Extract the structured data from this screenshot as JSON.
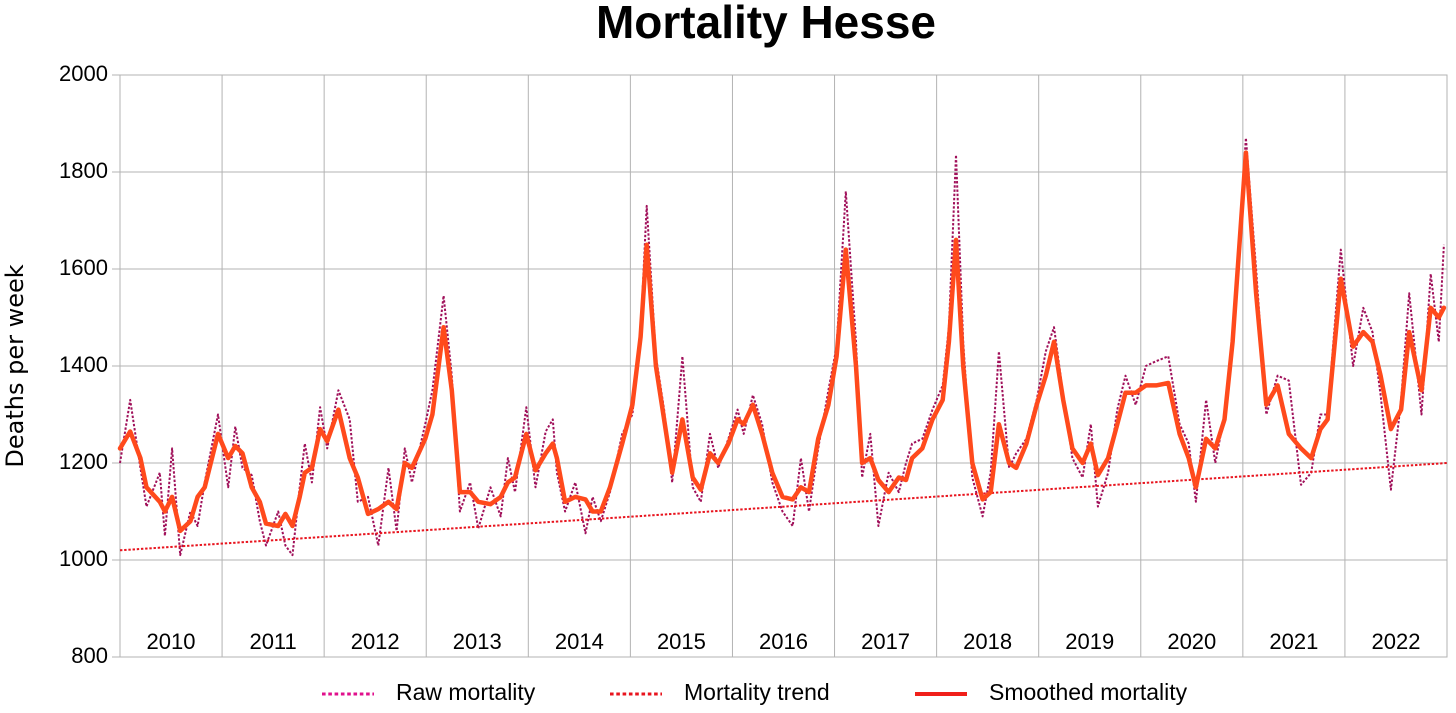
{
  "chart_data": {
    "type": "line",
    "title": "Mortality Hesse",
    "y_label": "Deaths per week",
    "xlim": [
      2010,
      2023
    ],
    "xgrid": [
      2010,
      2011,
      2012,
      2013,
      2014,
      2015,
      2016,
      2017,
      2018,
      2019,
      2020,
      2021,
      2022,
      2023
    ],
    "xticks": [
      {
        "value": 2010.5,
        "label": "2010"
      },
      {
        "value": 2011.5,
        "label": "2011"
      },
      {
        "value": 2012.5,
        "label": "2012"
      },
      {
        "value": 2013.5,
        "label": "2013"
      },
      {
        "value": 2014.5,
        "label": "2014"
      },
      {
        "value": 2015.5,
        "label": "2015"
      },
      {
        "value": 2016.5,
        "label": "2016"
      },
      {
        "value": 2017.5,
        "label": "2017"
      },
      {
        "value": 2018.5,
        "label": "2018"
      },
      {
        "value": 2019.5,
        "label": "2019"
      },
      {
        "value": 2020.5,
        "label": "2020"
      },
      {
        "value": 2021.5,
        "label": "2021"
      },
      {
        "value": 2022.5,
        "label": "2022"
      }
    ],
    "ylim": [
      800,
      2000
    ],
    "yticks": [
      800,
      1000,
      1200,
      1400,
      1600,
      1800,
      2000
    ],
    "grid": true,
    "legend": "bottom",
    "series": [
      {
        "name": "Raw mortality",
        "color": "#a0105a",
        "legend_color": "#e0108c",
        "style": "dotted",
        "width": 2,
        "x": [
          2010.0,
          2010.1,
          2010.2,
          2010.26,
          2010.39,
          2010.44,
          2010.51,
          2010.59,
          2010.69,
          2010.76,
          2010.83,
          2010.96,
          2011.06,
          2011.13,
          2011.2,
          2011.29,
          2011.37,
          2011.43,
          2011.55,
          2011.62,
          2011.69,
          2011.76,
          2011.81,
          2011.88,
          2011.96,
          2012.03,
          2012.14,
          2012.25,
          2012.33,
          2012.43,
          2012.53,
          2012.63,
          2012.71,
          2012.79,
          2012.86,
          2012.99,
          2013.06,
          2013.17,
          2013.25,
          2013.33,
          2013.43,
          2013.51,
          2013.63,
          2013.73,
          2013.8,
          2013.87,
          2013.98,
          2014.07,
          2014.17,
          2014.24,
          2014.28,
          2014.36,
          2014.46,
          2014.56,
          2014.63,
          2014.71,
          2014.8,
          2014.92,
          2015.02,
          2015.1,
          2015.16,
          2015.25,
          2015.33,
          2015.41,
          2015.51,
          2015.61,
          2015.69,
          2015.78,
          2015.86,
          2015.96,
          2016.05,
          2016.11,
          2016.2,
          2016.29,
          2016.39,
          2016.49,
          2016.59,
          2016.67,
          2016.75,
          2016.84,
          2016.94,
          2017.02,
          2017.11,
          2017.21,
          2017.27,
          2017.35,
          2017.43,
          2017.53,
          2017.63,
          2017.7,
          2017.76,
          2017.86,
          2017.96,
          2018.06,
          2018.12,
          2018.19,
          2018.26,
          2018.35,
          2018.45,
          2018.53,
          2018.61,
          2018.71,
          2018.78,
          2018.88,
          2018.98,
          2019.07,
          2019.15,
          2019.24,
          2019.33,
          2019.43,
          2019.51,
          2019.58,
          2019.68,
          2019.77,
          2019.85,
          2019.95,
          2020.05,
          2020.15,
          2020.27,
          2020.38,
          2020.47,
          2020.54,
          2020.64,
          2020.73,
          2020.82,
          2020.9,
          2021.03,
          2021.13,
          2021.23,
          2021.34,
          2021.45,
          2021.57,
          2021.67,
          2021.76,
          2021.83,
          2021.96,
          2022.08,
          2022.18,
          2022.27,
          2022.35,
          2022.45,
          2022.55,
          2022.63,
          2022.75,
          2022.84,
          2022.92,
          2022.97
        ],
        "values": [
          1200,
          1330,
          1190,
          1110,
          1180,
          1050,
          1230,
          1010,
          1100,
          1070,
          1160,
          1300,
          1150,
          1275,
          1190,
          1175,
          1080,
          1030,
          1100,
          1030,
          1010,
          1150,
          1240,
          1160,
          1315,
          1230,
          1350,
          1290,
          1120,
          1130,
          1030,
          1190,
          1060,
          1230,
          1160,
          1280,
          1350,
          1545,
          1380,
          1100,
          1160,
          1065,
          1150,
          1090,
          1210,
          1140,
          1315,
          1150,
          1265,
          1290,
          1180,
          1100,
          1160,
          1055,
          1130,
          1080,
          1140,
          1260,
          1300,
          1470,
          1730,
          1420,
          1310,
          1160,
          1420,
          1150,
          1120,
          1260,
          1190,
          1250,
          1310,
          1260,
          1340,
          1280,
          1160,
          1100,
          1070,
          1210,
          1100,
          1230,
          1350,
          1440,
          1760,
          1450,
          1170,
          1260,
          1070,
          1180,
          1140,
          1200,
          1240,
          1250,
          1310,
          1360,
          1480,
          1835,
          1450,
          1170,
          1090,
          1180,
          1430,
          1190,
          1220,
          1250,
          1330,
          1430,
          1480,
          1340,
          1210,
          1170,
          1280,
          1110,
          1180,
          1310,
          1380,
          1320,
          1400,
          1410,
          1420,
          1280,
          1240,
          1120,
          1330,
          1200,
          1300,
          1460,
          1870,
          1600,
          1300,
          1380,
          1370,
          1155,
          1180,
          1300,
          1300,
          1640,
          1400,
          1520,
          1470,
          1340,
          1145,
          1330,
          1550,
          1300,
          1590,
          1450,
          1650
        ]
      },
      {
        "name": "Mortality trend",
        "color": "#e8141e",
        "legend_color": "#e8141e",
        "style": "dotted",
        "width": 2,
        "x": [
          2010,
          2023
        ],
        "values": [
          1020,
          1200
        ]
      },
      {
        "name": "Smoothed mortality",
        "color": "#ff4a1c",
        "legend_color": "#f0201a",
        "style": "solid",
        "width": 4.5,
        "x": [
          2010.0,
          2010.1,
          2010.2,
          2010.26,
          2010.39,
          2010.44,
          2010.51,
          2010.59,
          2010.69,
          2010.76,
          2010.83,
          2010.96,
          2011.06,
          2011.13,
          2011.2,
          2011.29,
          2011.37,
          2011.43,
          2011.55,
          2011.62,
          2011.69,
          2011.76,
          2011.81,
          2011.88,
          2011.96,
          2012.03,
          2012.14,
          2012.25,
          2012.33,
          2012.43,
          2012.53,
          2012.63,
          2012.71,
          2012.79,
          2012.86,
          2012.99,
          2013.06,
          2013.17,
          2013.25,
          2013.33,
          2013.43,
          2013.51,
          2013.63,
          2013.73,
          2013.8,
          2013.87,
          2013.98,
          2014.07,
          2014.17,
          2014.24,
          2014.28,
          2014.36,
          2014.46,
          2014.56,
          2014.63,
          2014.71,
          2014.8,
          2014.92,
          2015.02,
          2015.1,
          2015.16,
          2015.25,
          2015.33,
          2015.41,
          2015.51,
          2015.61,
          2015.69,
          2015.78,
          2015.86,
          2015.96,
          2016.05,
          2016.11,
          2016.2,
          2016.29,
          2016.39,
          2016.49,
          2016.59,
          2016.67,
          2016.75,
          2016.84,
          2016.94,
          2017.02,
          2017.11,
          2017.21,
          2017.27,
          2017.35,
          2017.43,
          2017.53,
          2017.63,
          2017.7,
          2017.76,
          2017.86,
          2017.96,
          2018.06,
          2018.12,
          2018.19,
          2018.26,
          2018.35,
          2018.45,
          2018.53,
          2018.61,
          2018.71,
          2018.78,
          2018.88,
          2018.98,
          2019.07,
          2019.15,
          2019.24,
          2019.33,
          2019.43,
          2019.51,
          2019.58,
          2019.68,
          2019.77,
          2019.85,
          2019.95,
          2020.05,
          2020.15,
          2020.27,
          2020.38,
          2020.47,
          2020.54,
          2020.64,
          2020.73,
          2020.82,
          2020.9,
          2021.03,
          2021.13,
          2021.23,
          2021.34,
          2021.45,
          2021.57,
          2021.67,
          2021.76,
          2021.83,
          2021.96,
          2022.08,
          2022.18,
          2022.27,
          2022.35,
          2022.45,
          2022.55,
          2022.63,
          2022.75,
          2022.84,
          2022.92,
          2022.97
        ],
        "values": [
          1230,
          1265,
          1210,
          1150,
          1120,
          1100,
          1130,
          1060,
          1080,
          1130,
          1150,
          1260,
          1210,
          1235,
          1220,
          1150,
          1120,
          1075,
          1070,
          1095,
          1070,
          1130,
          1180,
          1190,
          1270,
          1245,
          1310,
          1210,
          1170,
          1095,
          1105,
          1120,
          1105,
          1200,
          1190,
          1250,
          1300,
          1480,
          1350,
          1140,
          1140,
          1120,
          1115,
          1130,
          1160,
          1170,
          1260,
          1185,
          1220,
          1240,
          1210,
          1120,
          1130,
          1125,
          1100,
          1100,
          1150,
          1240,
          1320,
          1460,
          1650,
          1400,
          1290,
          1180,
          1290,
          1170,
          1145,
          1220,
          1200,
          1240,
          1290,
          1280,
          1320,
          1260,
          1180,
          1130,
          1125,
          1150,
          1140,
          1250,
          1320,
          1420,
          1640,
          1400,
          1200,
          1210,
          1165,
          1140,
          1170,
          1165,
          1210,
          1230,
          1290,
          1330,
          1450,
          1660,
          1400,
          1200,
          1125,
          1140,
          1280,
          1200,
          1190,
          1240,
          1320,
          1380,
          1450,
          1330,
          1230,
          1200,
          1240,
          1175,
          1210,
          1280,
          1345,
          1345,
          1360,
          1360,
          1365,
          1260,
          1210,
          1150,
          1250,
          1230,
          1290,
          1450,
          1840,
          1550,
          1320,
          1360,
          1260,
          1230,
          1210,
          1270,
          1290,
          1580,
          1440,
          1470,
          1450,
          1380,
          1270,
          1310,
          1470,
          1350,
          1520,
          1500,
          1520
        ]
      }
    ]
  }
}
